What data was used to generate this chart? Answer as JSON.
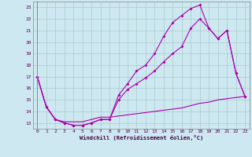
{
  "xlabel": "Windchill (Refroidissement éolien,°C)",
  "bg_color": "#cde8f0",
  "grid_color": "#aacccc",
  "line_color": "#aa00aa",
  "xlim": [
    -0.5,
    23.5
  ],
  "ylim": [
    12.5,
    23.5
  ],
  "yticks": [
    13,
    14,
    15,
    16,
    17,
    18,
    19,
    20,
    21,
    22,
    23
  ],
  "xticks": [
    0,
    1,
    2,
    3,
    4,
    5,
    6,
    7,
    8,
    9,
    10,
    11,
    12,
    13,
    14,
    15,
    16,
    17,
    18,
    19,
    20,
    21,
    22,
    23
  ],
  "line1_x": [
    0,
    1,
    2,
    3,
    4,
    5,
    6,
    7,
    8,
    9,
    10,
    11,
    12,
    13,
    14,
    15,
    16,
    17,
    18,
    19,
    20,
    21,
    22,
    23
  ],
  "line1_y": [
    17.0,
    14.4,
    13.3,
    13.0,
    12.8,
    12.8,
    13.0,
    13.3,
    13.3,
    15.4,
    16.4,
    17.5,
    18.0,
    19.0,
    20.5,
    21.7,
    22.3,
    22.9,
    23.2,
    21.2,
    20.3,
    21.0,
    17.3,
    15.3
  ],
  "line2_x": [
    0,
    1,
    2,
    3,
    4,
    5,
    6,
    7,
    8,
    9,
    10,
    11,
    12,
    13,
    14,
    15,
    16,
    17,
    18,
    19,
    20,
    21,
    22,
    23
  ],
  "line2_y": [
    17.0,
    14.4,
    13.3,
    13.0,
    12.8,
    12.8,
    13.0,
    13.3,
    13.3,
    15.0,
    15.9,
    16.4,
    16.9,
    17.5,
    18.3,
    19.0,
    19.6,
    21.2,
    22.0,
    21.2,
    20.3,
    21.0,
    17.3,
    15.3
  ],
  "line3_x": [
    0,
    1,
    2,
    3,
    4,
    5,
    6,
    7,
    8,
    9,
    10,
    11,
    12,
    13,
    14,
    15,
    16,
    17,
    18,
    19,
    20,
    21,
    22,
    23
  ],
  "line3_y": [
    17.0,
    14.4,
    13.3,
    13.1,
    13.1,
    13.1,
    13.3,
    13.5,
    13.5,
    13.6,
    13.7,
    13.8,
    13.9,
    14.0,
    14.1,
    14.2,
    14.3,
    14.5,
    14.7,
    14.8,
    15.0,
    15.1,
    15.2,
    15.3
  ]
}
